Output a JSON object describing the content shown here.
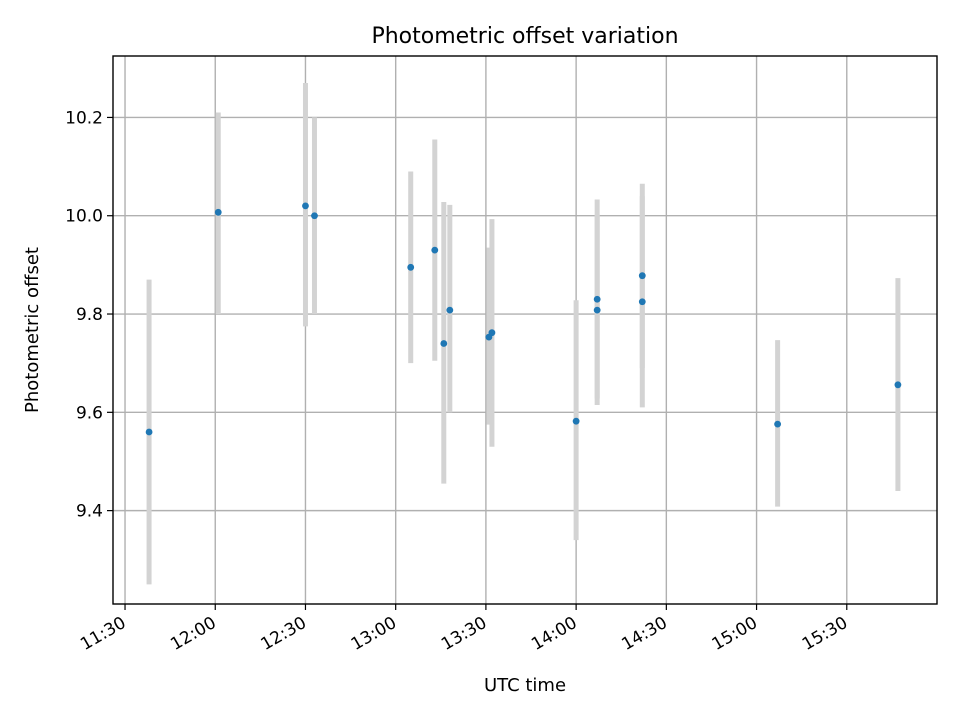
{
  "chart_data": {
    "type": "scatter",
    "title": "Photometric offset variation",
    "xlabel": "UTC time",
    "ylabel": "Photometric offset",
    "grid": true,
    "x_ticks": [
      "11:30",
      "12:00",
      "12:30",
      "13:00",
      "13:30",
      "14:00",
      "14:30",
      "15:00",
      "15:30"
    ],
    "y_ticks": [
      "9.4",
      "9.6",
      "9.8",
      "10.0",
      "10.2"
    ],
    "xlim": [
      "11:26",
      "16:00"
    ],
    "ylim": [
      9.21,
      10.325
    ],
    "colors": {
      "point": "#1f77b4",
      "errorbar": "#d3d3d3",
      "grid": "#b0b0b0"
    },
    "points": [
      {
        "x": "11:38",
        "y": 9.56,
        "y_low": 9.25,
        "y_high": 9.87
      },
      {
        "x": "12:01",
        "y": 10.007,
        "y_low": 9.8,
        "y_high": 10.21
      },
      {
        "x": "12:30",
        "y": 10.02,
        "y_low": 9.775,
        "y_high": 10.27
      },
      {
        "x": "12:33",
        "y": 10.0,
        "y_low": 9.8,
        "y_high": 10.2
      },
      {
        "x": "13:05",
        "y": 9.895,
        "y_low": 9.7,
        "y_high": 10.09
      },
      {
        "x": "13:13",
        "y": 9.93,
        "y_low": 9.705,
        "y_high": 10.155
      },
      {
        "x": "13:16",
        "y": 9.74,
        "y_low": 9.455,
        "y_high": 10.028
      },
      {
        "x": "13:18",
        "y": 9.808,
        "y_low": 9.6,
        "y_high": 10.022
      },
      {
        "x": "13:31",
        "y": 9.753,
        "y_low": 9.575,
        "y_high": 9.935
      },
      {
        "x": "13:32",
        "y": 9.762,
        "y_low": 9.53,
        "y_high": 9.993
      },
      {
        "x": "14:00",
        "y": 9.582,
        "y_low": 9.34,
        "y_high": 9.828
      },
      {
        "x": "14:07",
        "y": 9.808,
        "y_low": 9.615,
        "y_high": 10.002
      },
      {
        "x": "14:07",
        "y": 9.83,
        "y_low": 9.628,
        "y_high": 10.033
      },
      {
        "x": "14:22",
        "y": 9.825,
        "y_low": 9.61,
        "y_high": 10.04
      },
      {
        "x": "14:22",
        "y": 9.878,
        "y_low": 9.69,
        "y_high": 10.065
      },
      {
        "x": "15:07",
        "y": 9.576,
        "y_low": 9.408,
        "y_high": 9.747
      },
      {
        "x": "15:47",
        "y": 9.656,
        "y_low": 9.44,
        "y_high": 9.873
      }
    ]
  }
}
